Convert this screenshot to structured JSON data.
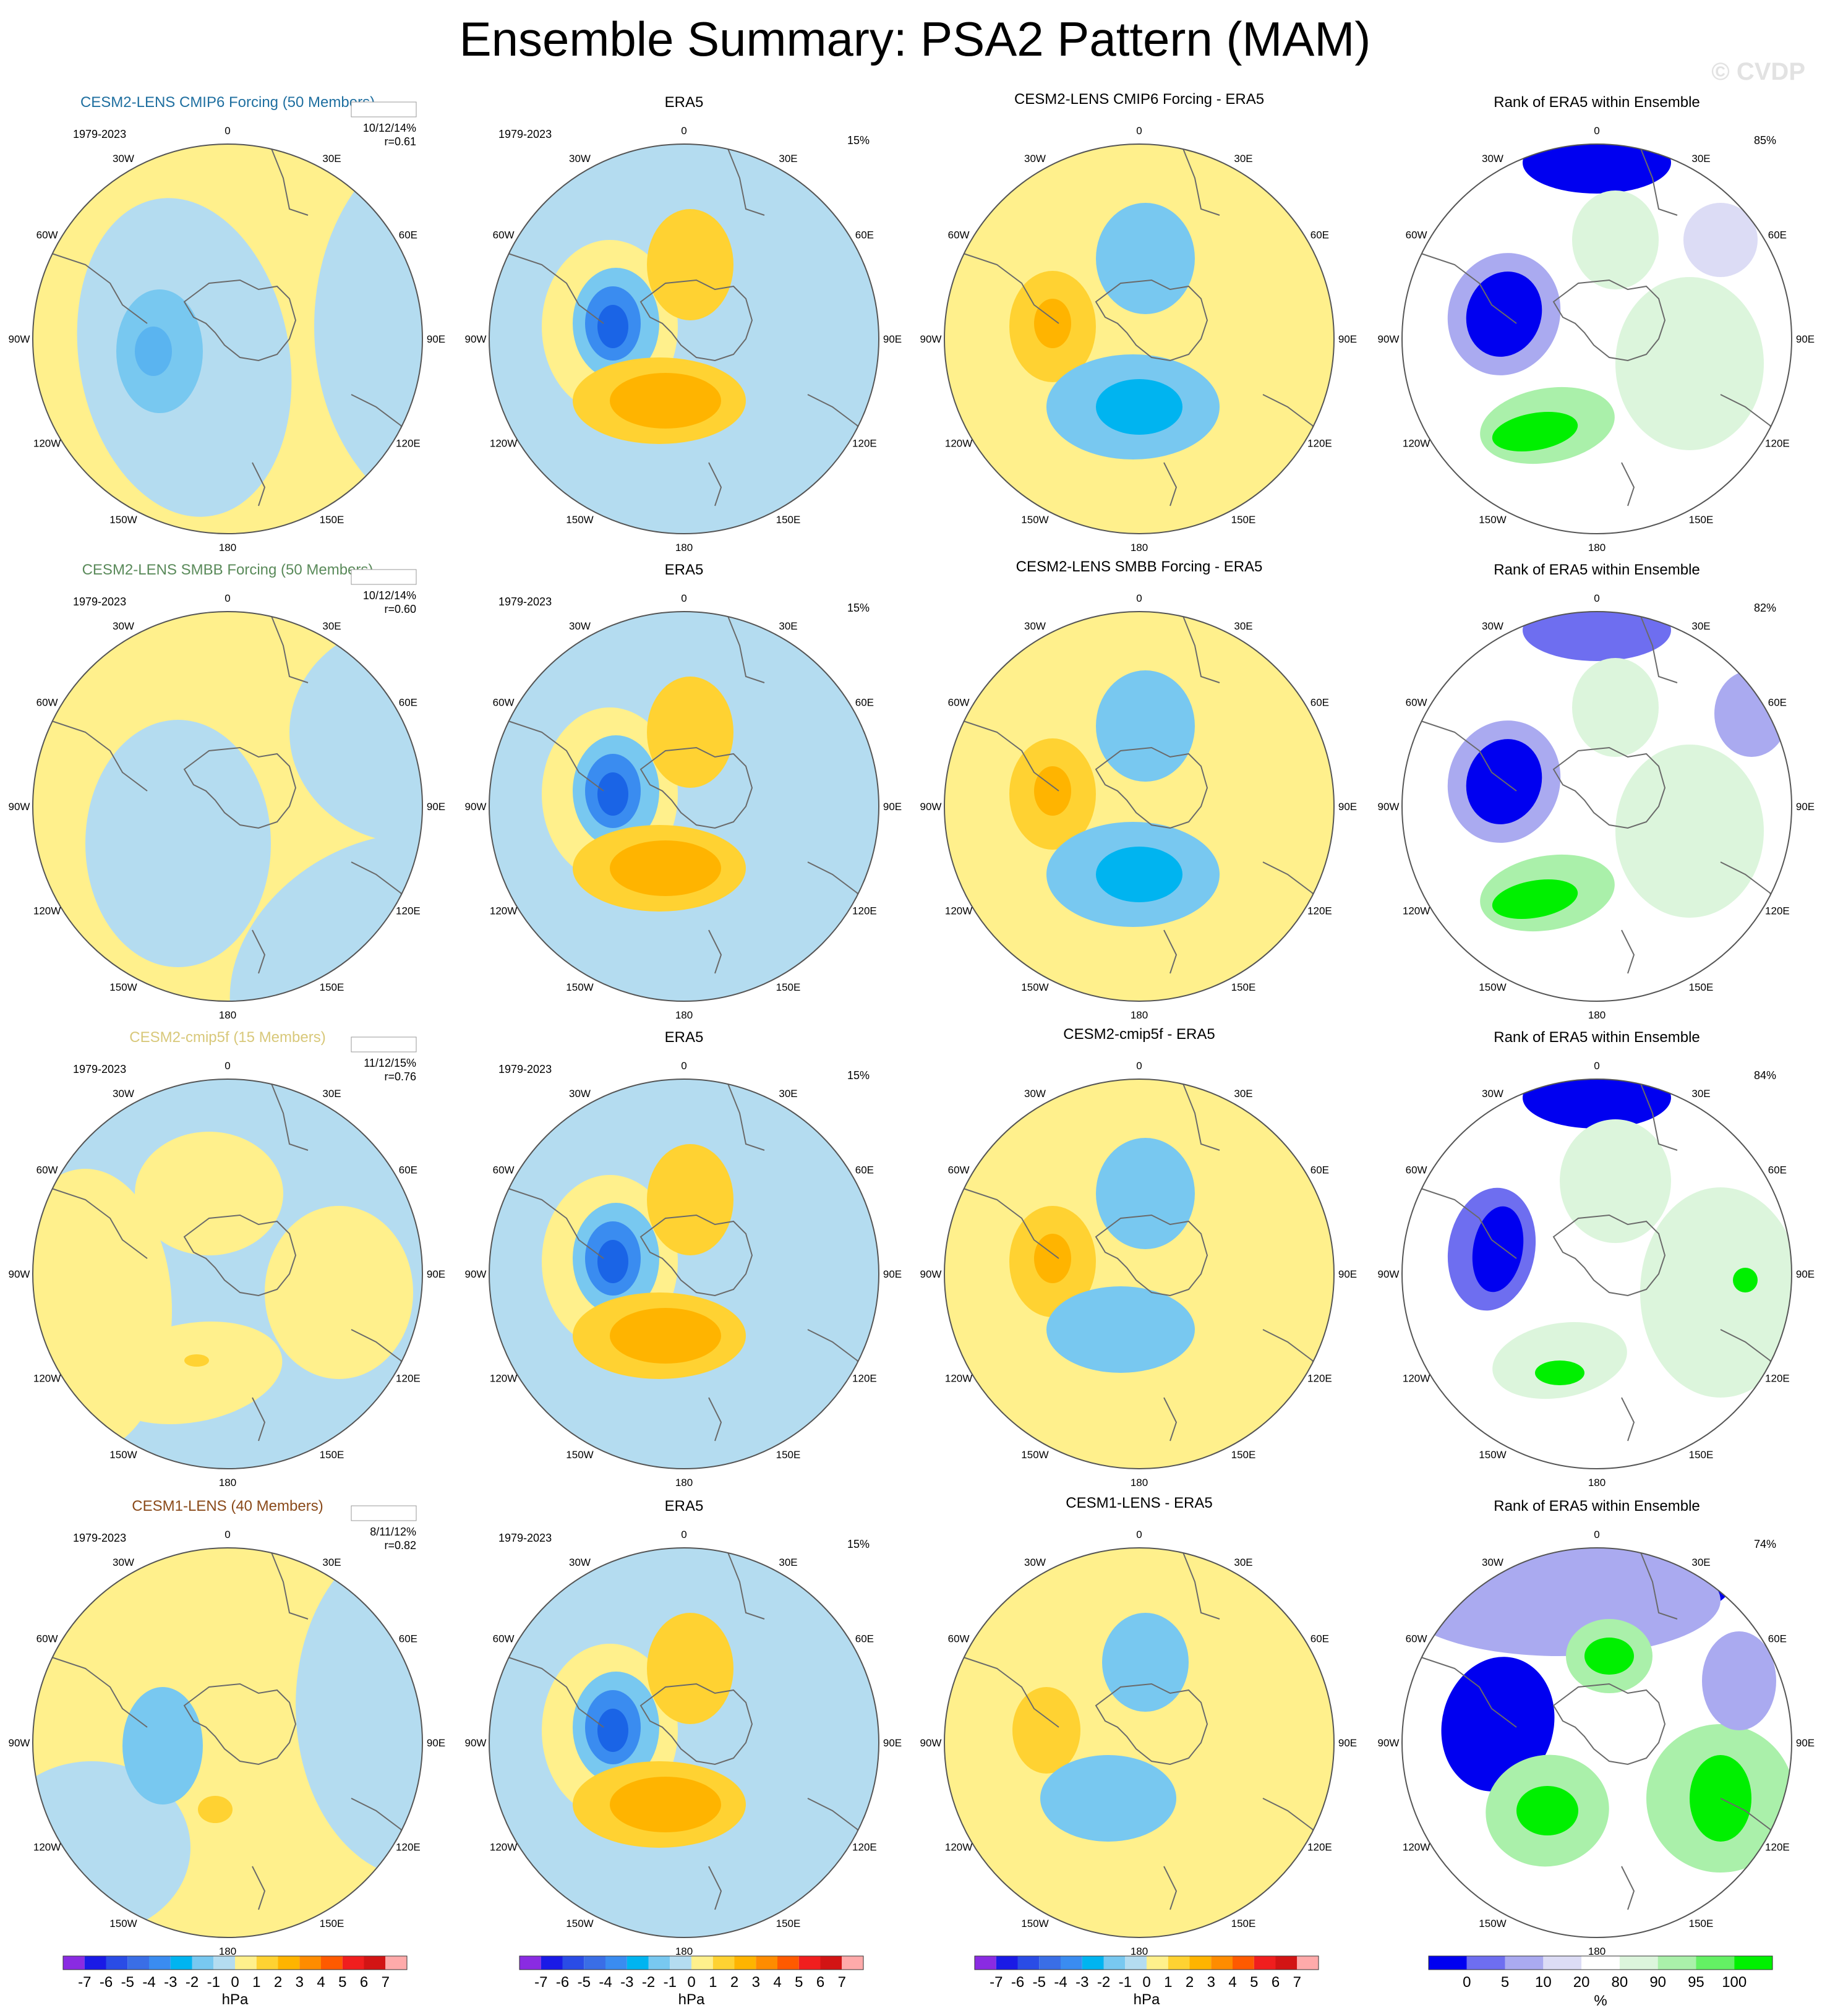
{
  "title": "Ensemble Summary: PSA2 Pattern (MAM)",
  "watermark": "© CVDP",
  "colors": {
    "light_blue": "#b4dcf0",
    "yellow": "#fff08c",
    "row_title_colors": [
      "#1f6fa0",
      "#5a8a5a",
      "#d8c87a",
      "#8a4a1a"
    ]
  },
  "longitude_labels": [
    "0",
    "30E",
    "60E",
    "90E",
    "120E",
    "150E",
    "180",
    "150W",
    "120W",
    "90W",
    "60W",
    "30W"
  ],
  "rows": [
    {
      "model_title": "CESM2-LENS CMIP6 Forcing (50 Members)",
      "period": "1979-2023",
      "stats": "10/12/14%",
      "corr": "r=0.61",
      "era5_title": "ERA5",
      "era5_period": "1979-2023",
      "era5_pct": "15%",
      "diff_title": "CESM2-LENS CMIP6 Forcing - ERA5",
      "rank_title": "Rank of ERA5 within Ensemble",
      "rank_pct": "85%"
    },
    {
      "model_title": "CESM2-LENS SMBB Forcing (50 Members)",
      "period": "1979-2023",
      "stats": "10/12/14%",
      "corr": "r=0.60",
      "era5_title": "ERA5",
      "era5_period": "1979-2023",
      "era5_pct": "15%",
      "diff_title": "CESM2-LENS SMBB Forcing - ERA5",
      "rank_title": "Rank of ERA5 within Ensemble",
      "rank_pct": "82%"
    },
    {
      "model_title": "CESM2-cmip5f (15 Members)",
      "period": "1979-2023",
      "stats": "11/12/15%",
      "corr": "r=0.76",
      "era5_title": "ERA5",
      "era5_period": "1979-2023",
      "era5_pct": "15%",
      "diff_title": "CESM2-cmip5f - ERA5",
      "rank_title": "Rank of ERA5 within Ensemble",
      "rank_pct": "84%"
    },
    {
      "model_title": "CESM1-LENS (40 Members)",
      "period": "1979-2023",
      "stats": "8/11/12%",
      "corr": "r=0.82",
      "era5_title": "ERA5",
      "era5_period": "1979-2023",
      "era5_pct": "15%",
      "diff_title": "CESM1-LENS - ERA5",
      "rank_title": "Rank of ERA5 within Ensemble",
      "rank_pct": "74%"
    }
  ],
  "colorbar_hpa": {
    "unit": "hPa",
    "ticks": [
      "-7",
      "-6",
      "-5",
      "-4",
      "-3",
      "-2",
      "-1",
      "0",
      "1",
      "2",
      "3",
      "4",
      "5",
      "6",
      "7"
    ],
    "colors": [
      "#8a2be2",
      "#1a1ae6",
      "#2a4ce6",
      "#3a6ee6",
      "#3a8cf0",
      "#00b4f0",
      "#78c8f0",
      "#b4dcf0",
      "#fff08c",
      "#ffd232",
      "#ffb400",
      "#ff8c00",
      "#ff5a00",
      "#f01e1e",
      "#d21414",
      "#ffaaaa"
    ]
  },
  "colorbar_rank": {
    "unit": "%",
    "ticks": [
      "0",
      "5",
      "10",
      "20",
      "80",
      "90",
      "95",
      "100"
    ],
    "colors": [
      "#0000f0",
      "#6e6ef0",
      "#aaaaf0",
      "#dcdcf5",
      "#ffffff",
      "#dcf5dc",
      "#aaf0aa",
      "#64f064",
      "#00f000"
    ]
  }
}
